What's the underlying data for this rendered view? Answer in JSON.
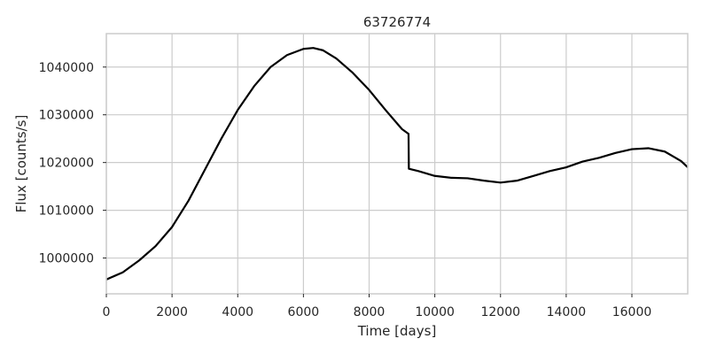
{
  "chart_data": {
    "type": "line",
    "title": "63726774",
    "xlabel": "Time [days]",
    "ylabel": "Flux [counts/s]",
    "xlim": [
      0,
      17700
    ],
    "ylim": [
      992500,
      1047000
    ],
    "xticks": [
      0,
      2000,
      4000,
      6000,
      8000,
      10000,
      12000,
      14000,
      16000
    ],
    "yticks": [
      1000000,
      1010000,
      1020000,
      1030000,
      1040000
    ],
    "grid": true,
    "legend": "none",
    "line_color": "#000000",
    "series": [
      {
        "x": [
          0,
          500,
          1000,
          1500,
          2000,
          2500,
          3000,
          3500,
          4000,
          4500,
          5000,
          5500,
          6000,
          6300,
          6600,
          7000,
          7500,
          8000,
          8500,
          9000,
          9200,
          9210,
          9500,
          10000,
          10500,
          11000,
          11500,
          12000,
          12500,
          13000,
          13500,
          14000,
          14500,
          15000,
          15500,
          16000,
          16500,
          17000,
          17500,
          17700
        ],
        "y": [
          995500,
          997000,
          999500,
          1002500,
          1006500,
          1012000,
          1018500,
          1025000,
          1031000,
          1036000,
          1040000,
          1042500,
          1043800,
          1044000,
          1043500,
          1041800,
          1038800,
          1035200,
          1031000,
          1027000,
          1026000,
          1018700,
          1018200,
          1017200,
          1016800,
          1016700,
          1016200,
          1015800,
          1016200,
          1017200,
          1018200,
          1019000,
          1020200,
          1021000,
          1022000,
          1022800,
          1023000,
          1022300,
          1020300,
          1019000
        ]
      }
    ]
  }
}
